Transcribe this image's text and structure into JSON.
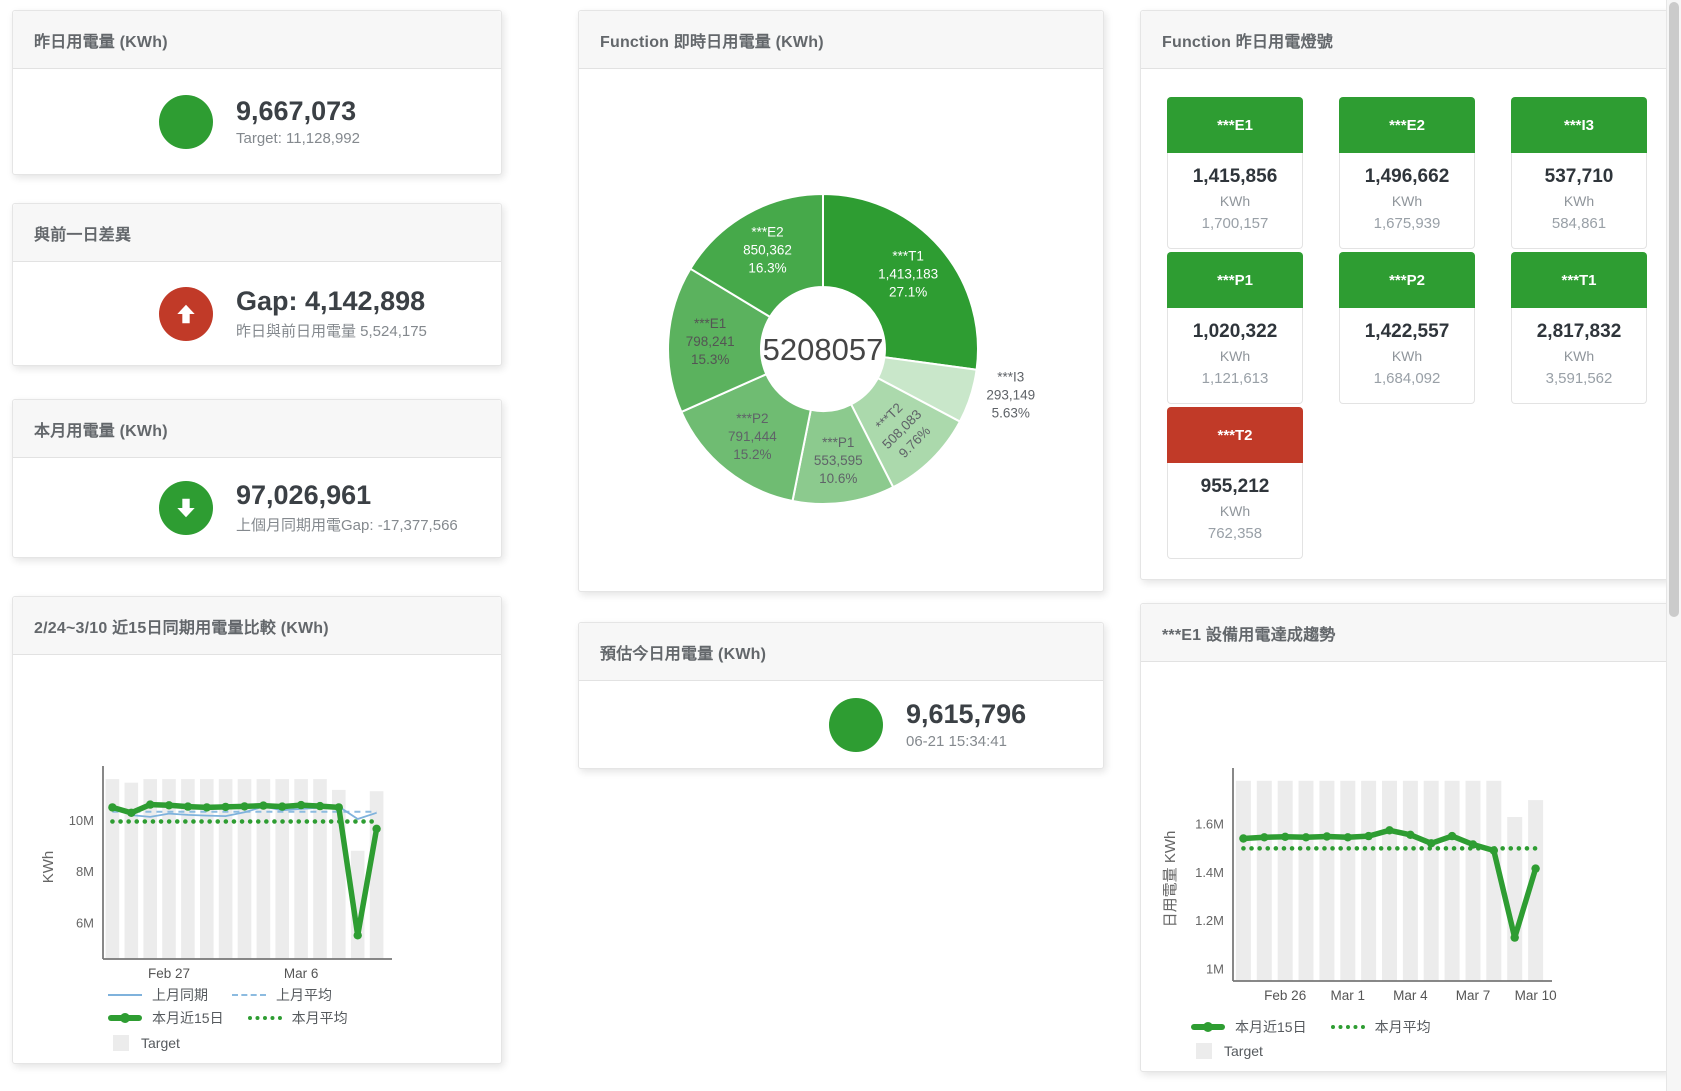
{
  "cards": {
    "yesterday": {
      "title": "昨日用電量 (KWh)",
      "value": "9,667,073",
      "subtitle": "Target: 11,128,992"
    },
    "gap_prev_day": {
      "title": "與前一日差異",
      "value": "Gap: 4,142,898",
      "subtitle": "昨日與前日用電量 5,524,175"
    },
    "month": {
      "title": "本月用電量 (KWh)",
      "value": "97,026,961",
      "subtitle": "上個月同期用電Gap: -17,377,566"
    },
    "estimate_today": {
      "title": "預估今日用電量 (KWh)",
      "value": "9,615,796",
      "subtitle": "06-21 15:34:41"
    }
  },
  "status_card": {
    "title": "Function 昨日用電燈號",
    "unit": "KWh",
    "tiles": [
      {
        "name": "***E1",
        "value": "1,415,856",
        "target": "1,700,157",
        "status": "green"
      },
      {
        "name": "***E2",
        "value": "1,496,662",
        "target": "1,675,939",
        "status": "green"
      },
      {
        "name": "***I3",
        "value": "537,710",
        "target": "584,861",
        "status": "green"
      },
      {
        "name": "***P1",
        "value": "1,020,322",
        "target": "1,121,613",
        "status": "green"
      },
      {
        "name": "***P2",
        "value": "1,422,557",
        "target": "1,684,092",
        "status": "green"
      },
      {
        "name": "***T1",
        "value": "2,817,832",
        "target": "3,591,562",
        "status": "green"
      },
      {
        "name": "***T2",
        "value": "955,212",
        "target": "762,358",
        "status": "red"
      }
    ]
  },
  "colors": {
    "green": "#2E9D32",
    "red": "#C13A28",
    "blue": "#7FB2DC",
    "blue_dashed": "#8CBBE0",
    "target_bar": "#ECECEC"
  },
  "chart_data": [
    {
      "type": "pie",
      "title": "Function 即時日用電量 (KWh)",
      "center_label": "5208057",
      "slices": [
        {
          "name": "***T1",
          "value": 1413183,
          "value_label": "1,413,183",
          "pct": "27.1%",
          "color": "#2E9D32",
          "label": "inside",
          "text": "#ffffff"
        },
        {
          "name": "***I3",
          "value": 293149,
          "value_label": "293,149",
          "pct": "5.63%",
          "color": "#C9E7CA",
          "label": "outside",
          "text": "#5f6368"
        },
        {
          "name": "***T2",
          "value": 508083,
          "value_label": "508,083",
          "pct": "9.76%",
          "color": "#ABD9AC",
          "label": "inside",
          "text": "#5f6368",
          "rotate": -45
        },
        {
          "name": "***P1",
          "value": 553595,
          "value_label": "553,595",
          "pct": "10.6%",
          "color": "#8CCA8E",
          "label": "inside",
          "text": "#5f6368"
        },
        {
          "name": "***P2",
          "value": 791444,
          "value_label": "791,444",
          "pct": "15.2%",
          "color": "#6FBC72",
          "label": "inside",
          "text": "#5f6368"
        },
        {
          "name": "***E1",
          "value": 798241,
          "value_label": "798,241",
          "pct": "15.3%",
          "color": "#5BB25E",
          "label": "inside",
          "text": "#545454"
        },
        {
          "name": "***E2",
          "value": 850362,
          "value_label": "850,362",
          "pct": "16.3%",
          "color": "#46A94A",
          "label": "inside",
          "text": "#ffffff"
        }
      ]
    },
    {
      "type": "line",
      "title": "2/24~3/10 近15日同期用電量比較 (KWh)",
      "ylabel": "KWh",
      "x": [
        "Feb 24",
        "Feb 25",
        "Feb 26",
        "Feb 27",
        "Feb 28",
        "Mar 1",
        "Mar 2",
        "Mar 3",
        "Mar 4",
        "Mar 5",
        "Mar 6",
        "Mar 7",
        "Mar 8",
        "Mar 9",
        "Mar 10"
      ],
      "xticks": [
        {
          "i": 3,
          "label": "Feb 27"
        },
        {
          "i": 10,
          "label": "Mar 6"
        }
      ],
      "ylim": [
        4600000,
        11800000
      ],
      "yticks": [
        {
          "v": 6000000,
          "label": "6M"
        },
        {
          "v": 8000000,
          "label": "8M"
        },
        {
          "v": 10000000,
          "label": "10M"
        }
      ],
      "series": [
        {
          "name": "上月同期",
          "role": "line-thin",
          "color": "#7FB2DC",
          "values": [
            10480000,
            10200000,
            10130000,
            10260000,
            10210000,
            10180000,
            10160000,
            10310000,
            10530000,
            10390000,
            10440000,
            10490000,
            10530000,
            10050000,
            10290000
          ]
        },
        {
          "name": "上月平均",
          "role": "line-dashed",
          "color": "#8CBBE0",
          "values": [
            10330000,
            10330000,
            10330000,
            10330000,
            10330000,
            10330000,
            10330000,
            10330000,
            10330000,
            10330000,
            10330000,
            10330000,
            10330000,
            10330000,
            10330000
          ]
        },
        {
          "name": "本月近15日",
          "role": "line-thick",
          "color": "#2E9D32",
          "values": [
            10500000,
            10290000,
            10610000,
            10580000,
            10530000,
            10500000,
            10520000,
            10540000,
            10570000,
            10530000,
            10590000,
            10550000,
            10500000,
            5524175,
            9667073
          ]
        },
        {
          "name": "本月平均",
          "role": "line-dotted",
          "color": "#2E9D32",
          "values": [
            9950000,
            9950000,
            9950000,
            9950000,
            9950000,
            9950000,
            9950000,
            9950000,
            9950000,
            9950000,
            9950000,
            9950000,
            9950000,
            9950000,
            9950000
          ]
        },
        {
          "name": "Target",
          "role": "bar",
          "color": "#ECECEC",
          "values": [
            11600000,
            11460000,
            11600000,
            11600000,
            11600000,
            11600000,
            11600000,
            11600000,
            11600000,
            11600000,
            11600000,
            11600000,
            11180000,
            8810000,
            11130000
          ]
        }
      ]
    },
    {
      "type": "line",
      "title": "***E1 設備用電達成趨勢",
      "ylabel": "日用電量 KWh",
      "x": [
        "Feb 24",
        "Feb 25",
        "Feb 26",
        "Feb 27",
        "Feb 28",
        "Mar 1",
        "Mar 2",
        "Mar 3",
        "Mar 4",
        "Mar 5",
        "Mar 6",
        "Mar 7",
        "Mar 8",
        "Mar 9",
        "Mar 10"
      ],
      "xticks": [
        {
          "i": 2,
          "label": "Feb 26"
        },
        {
          "i": 5,
          "label": "Mar 1"
        },
        {
          "i": 8,
          "label": "Mar 4"
        },
        {
          "i": 11,
          "label": "Mar 7"
        },
        {
          "i": 14,
          "label": "Mar 10"
        }
      ],
      "ylim": [
        950000,
        1800000
      ],
      "yticks": [
        {
          "v": 1000000,
          "label": "1M"
        },
        {
          "v": 1200000,
          "label": "1.2M"
        },
        {
          "v": 1400000,
          "label": "1.4M"
        },
        {
          "v": 1600000,
          "label": "1.6M"
        }
      ],
      "series": [
        {
          "name": "本月近15日",
          "role": "line-thick",
          "color": "#2E9D32",
          "values": [
            1541000,
            1546000,
            1548000,
            1546000,
            1549000,
            1546000,
            1551000,
            1575000,
            1556000,
            1521000,
            1551000,
            1516000,
            1491000,
            1130000,
            1415856
          ]
        },
        {
          "name": "本月平均",
          "role": "line-dotted",
          "color": "#2E9D32",
          "values": [
            1500000,
            1500000,
            1500000,
            1500000,
            1500000,
            1500000,
            1500000,
            1500000,
            1500000,
            1500000,
            1500000,
            1500000,
            1500000,
            1500000,
            1500000
          ]
        },
        {
          "name": "Target",
          "role": "bar",
          "color": "#ECECEC",
          "values": [
            1780000,
            1780000,
            1780000,
            1780000,
            1780000,
            1780000,
            1780000,
            1780000,
            1780000,
            1780000,
            1780000,
            1780000,
            1780000,
            1630000,
            1700157
          ]
        }
      ]
    }
  ]
}
